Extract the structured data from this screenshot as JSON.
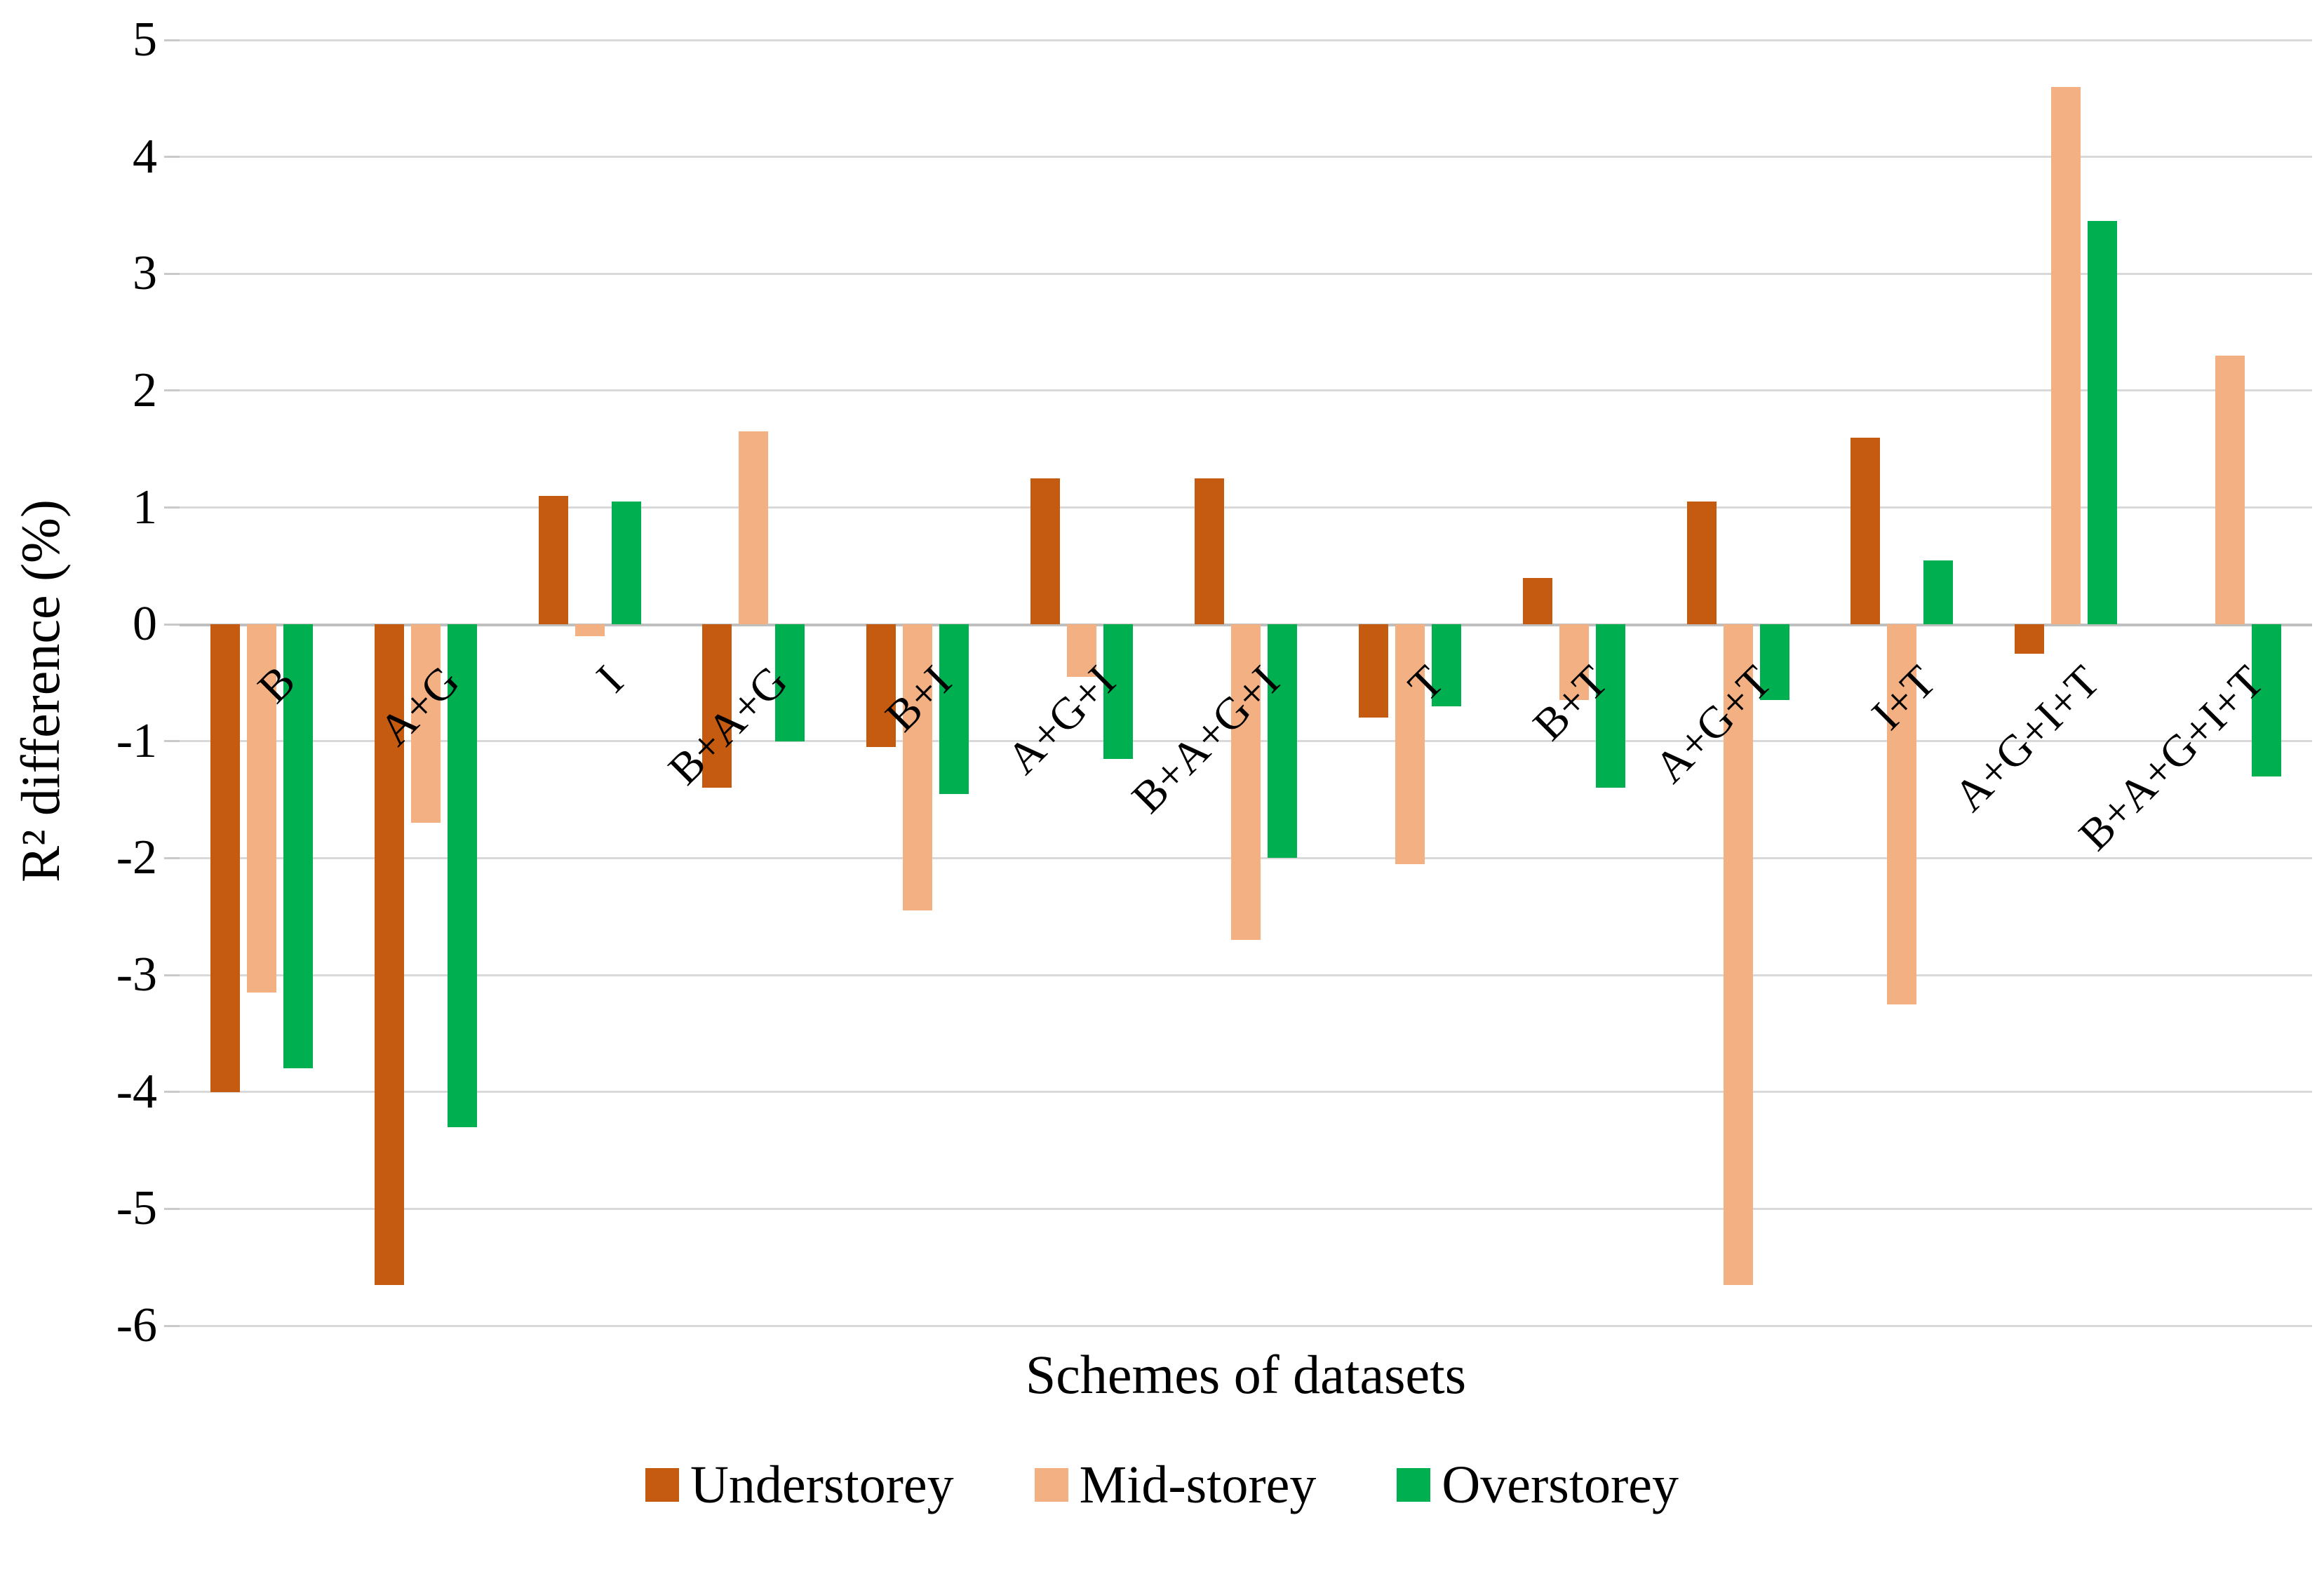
{
  "chart_data": {
    "type": "bar",
    "title": "",
    "xlabel": "Schemes of datasets",
    "ylabel": "R² difference (%)",
    "categories": [
      "B",
      "A+G",
      "I",
      "B+A+G",
      "B+I",
      "A+G+I",
      "B+A+G+I",
      "T",
      "B+T",
      "A+G+T",
      "I+T",
      "A+G+I+T",
      "B+A+G+I+T"
    ],
    "series": [
      {
        "name": "Understorey",
        "color": "#C55A11",
        "values": [
          -4.0,
          -5.65,
          1.1,
          -1.4,
          -1.05,
          1.25,
          1.25,
          -0.8,
          0.4,
          1.05,
          1.6,
          -0.25,
          0
        ]
      },
      {
        "name": "Mid-storey",
        "color": "#F2B083",
        "values": [
          -3.15,
          -1.7,
          -0.1,
          1.65,
          -2.45,
          -0.45,
          -2.7,
          -2.05,
          -0.65,
          -5.65,
          -3.25,
          4.6,
          2.3
        ]
      },
      {
        "name": "Overstorey",
        "color": "#00B050",
        "values": [
          -3.8,
          -4.3,
          1.05,
          -1.0,
          -1.45,
          -1.15,
          -2.0,
          -0.7,
          -1.4,
          -0.65,
          0.55,
          3.45,
          -1.3
        ]
      }
    ],
    "ylim": [
      -6,
      5
    ],
    "ytick_step": 1,
    "grid": true,
    "legend_position": "bottom",
    "gridline_color": "#D9D9D9",
    "axis_line_color": "#BFBFBF"
  },
  "axis": {
    "yticks": [
      "5",
      "4",
      "3",
      "2",
      "1",
      "0",
      "-1",
      "-2",
      "-3",
      "-4",
      "-5",
      "-6"
    ]
  }
}
